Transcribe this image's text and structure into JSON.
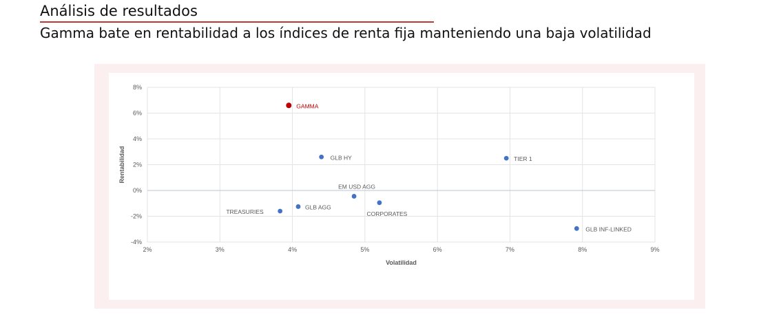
{
  "header": {
    "title": "Análisis de resultados",
    "subtitle": "Gamma bate en rentabilidad a los índices de renta fija manteniendo una baja volatilidad"
  },
  "colors": {
    "accent": "#c0392b",
    "point": "#4472c4",
    "highlight": "#c00000",
    "frame": "#fbeff0"
  },
  "chart_data": {
    "type": "scatter",
    "xlabel": "Volatilidad",
    "ylabel": "Rentabilidad",
    "xlim": [
      2,
      9
    ],
    "ylim": [
      -4,
      8
    ],
    "xticks": [
      "2%",
      "3%",
      "4%",
      "5%",
      "6%",
      "7%",
      "8%",
      "9%"
    ],
    "yticks": [
      "8%",
      "6%",
      "4%",
      "2%",
      "0%",
      "-2%",
      "-4%"
    ],
    "grid": true,
    "points": [
      {
        "label": "GAMMA",
        "x": 3.95,
        "y": 6.6,
        "highlight": true
      },
      {
        "label": "GLB HY",
        "x": 4.4,
        "y": 2.6,
        "highlight": false
      },
      {
        "label": "TIER 1",
        "x": 6.95,
        "y": 2.5,
        "highlight": false
      },
      {
        "label": "EM USD AGG",
        "x": 4.85,
        "y": -0.45,
        "highlight": false
      },
      {
        "label": "CORPORATES",
        "x": 5.2,
        "y": -0.95,
        "highlight": false
      },
      {
        "label": "GLB AGG",
        "x": 4.08,
        "y": -1.25,
        "highlight": false
      },
      {
        "label": "TREASURIES",
        "x": 3.83,
        "y": -1.6,
        "highlight": false
      },
      {
        "label": "GLB INF-LINKED",
        "x": 7.92,
        "y": -2.95,
        "highlight": false
      }
    ]
  }
}
